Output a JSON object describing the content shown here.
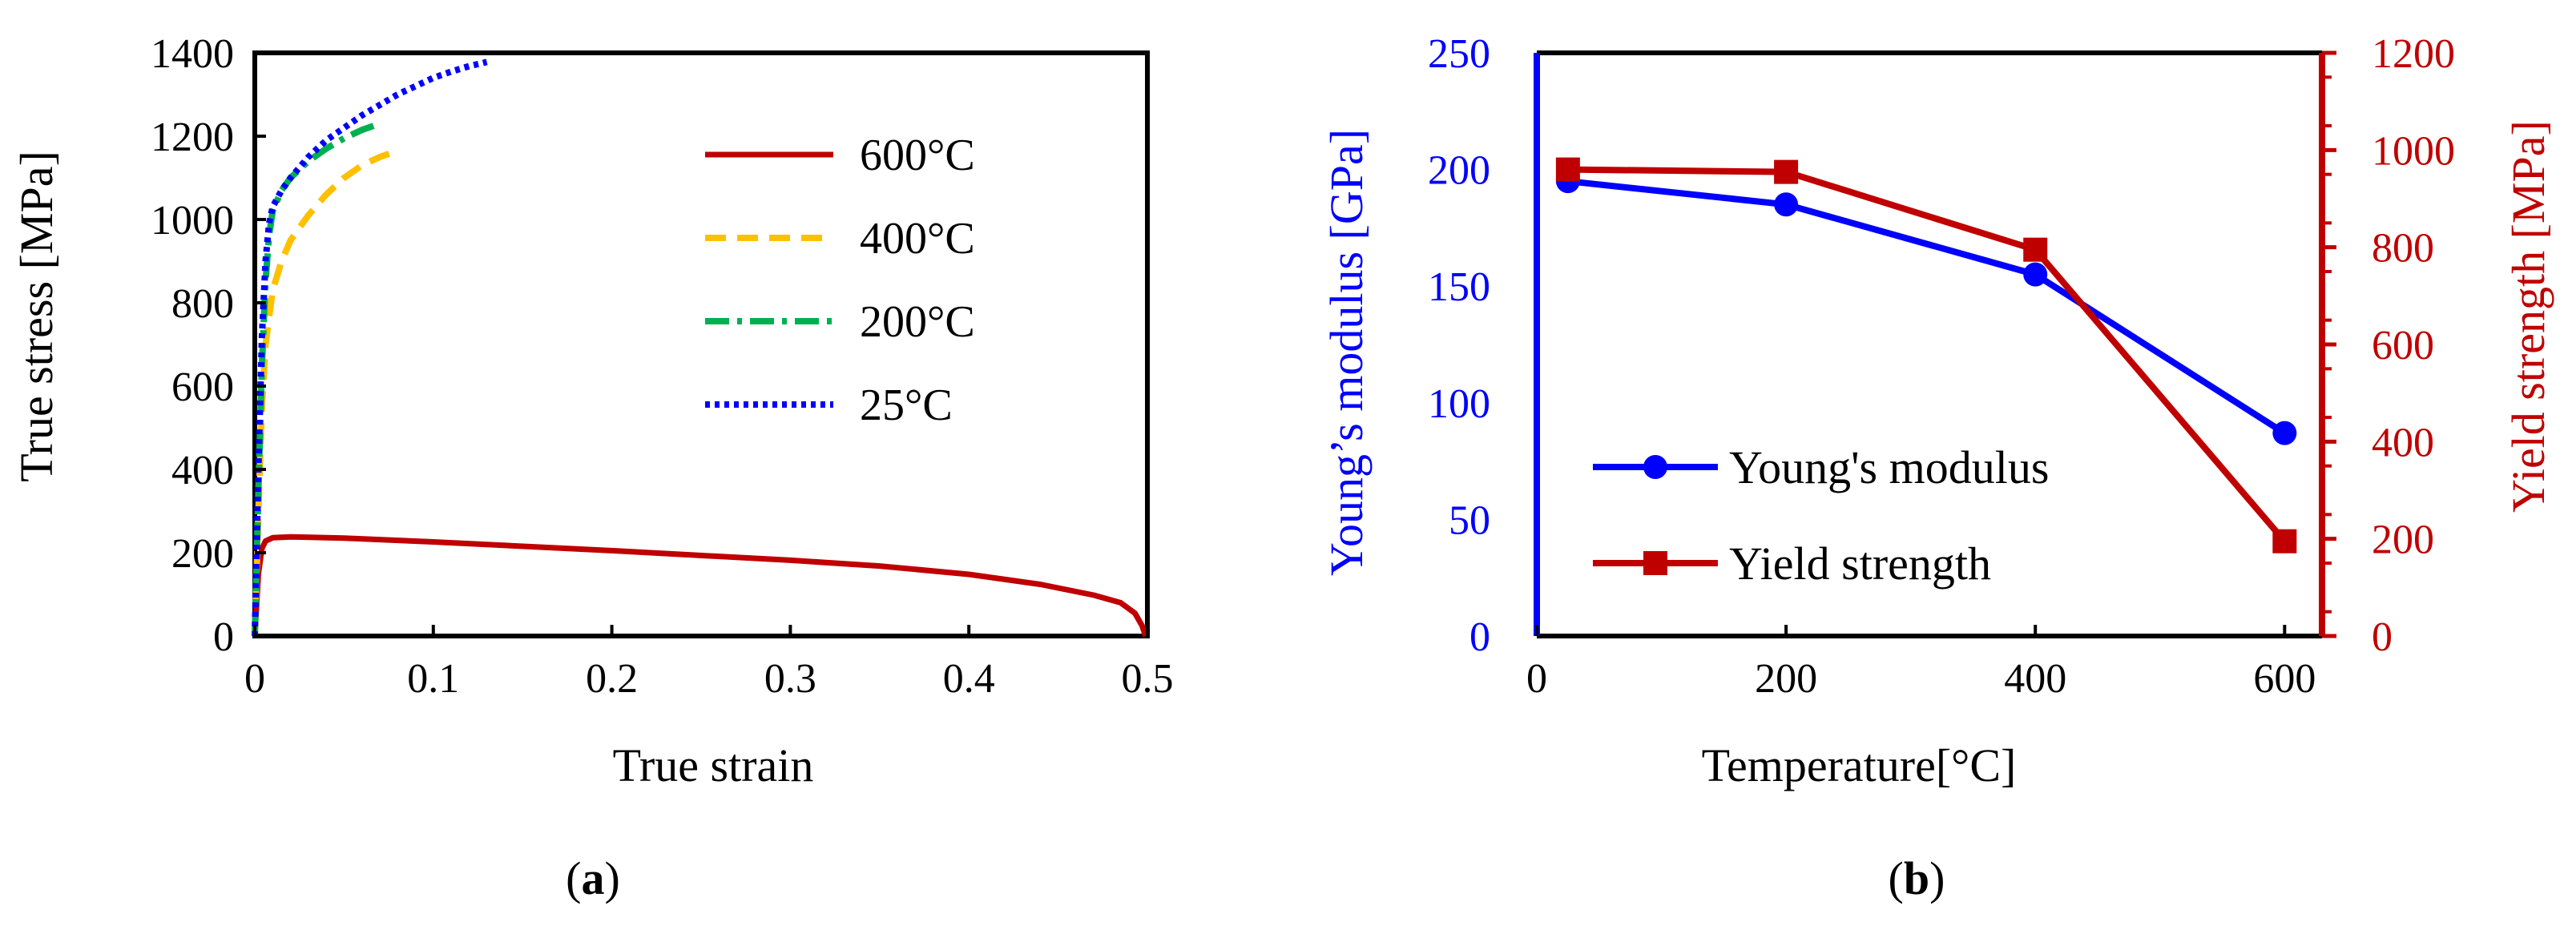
{
  "colors": {
    "red": "#C00000",
    "orange": "#FFC000",
    "green": "#00B050",
    "blue": "#0000FF",
    "black": "#000000"
  },
  "panels": {
    "a": {
      "label_open": "(",
      "label_letter": "a",
      "label_close": ")"
    },
    "b": {
      "label_open": "(",
      "label_letter": "b",
      "label_close": ")"
    }
  },
  "chart_data": [
    {
      "type": "line",
      "title": "",
      "xlabel": "True strain",
      "ylabel": "True stress [MPa]",
      "xlim": [
        0,
        0.5
      ],
      "ylim": [
        0,
        1400
      ],
      "xticks": [
        0,
        0.1,
        0.2,
        0.3,
        0.4,
        0.5
      ],
      "xtick_labels": [
        "0",
        "0.1",
        "0.2",
        "0.3",
        "0.4",
        "0.5"
      ],
      "yticks": [
        0,
        200,
        400,
        600,
        800,
        1000,
        1200,
        1400
      ],
      "ytick_labels": [
        "0",
        "200",
        "400",
        "600",
        "800",
        "1000",
        "1200",
        "1400"
      ],
      "grid": false,
      "legend_position": "upper-right",
      "series": [
        {
          "name": "600°C",
          "style": "solid",
          "color": "#C00000",
          "x": [
            0,
            0.002,
            0.004,
            0.006,
            0.01,
            0.02,
            0.05,
            0.1,
            0.2,
            0.3,
            0.35,
            0.4,
            0.44,
            0.47,
            0.485,
            0.493,
            0.497,
            0.499
          ],
          "y": [
            0,
            150,
            210,
            228,
            236,
            238,
            235,
            226,
            205,
            182,
            168,
            148,
            124,
            98,
            80,
            55,
            25,
            0
          ]
        },
        {
          "name": "400°C",
          "style": "dashed",
          "color": "#FFC000",
          "x": [
            0,
            0.002,
            0.004,
            0.006,
            0.01,
            0.015,
            0.02,
            0.03,
            0.04,
            0.05,
            0.06,
            0.07,
            0.08
          ],
          "y": [
            0,
            300,
            550,
            700,
            830,
            900,
            950,
            1010,
            1060,
            1100,
            1130,
            1150,
            1165
          ]
        },
        {
          "name": "200°C",
          "style": "dashdot",
          "color": "#00B050",
          "x": [
            0,
            0.002,
            0.004,
            0.006,
            0.008,
            0.01,
            0.015,
            0.02,
            0.025,
            0.03,
            0.04,
            0.05,
            0.06,
            0.07
          ],
          "y": [
            0,
            350,
            650,
            850,
            960,
            1020,
            1070,
            1100,
            1120,
            1140,
            1170,
            1195,
            1215,
            1230
          ]
        },
        {
          "name": "25°C",
          "style": "dotted",
          "color": "#0000FF",
          "x": [
            0,
            0.002,
            0.004,
            0.006,
            0.008,
            0.01,
            0.015,
            0.02,
            0.03,
            0.04,
            0.05,
            0.06,
            0.07,
            0.08,
            0.09,
            0.1,
            0.11,
            0.12,
            0.13
          ],
          "y": [
            0,
            400,
            720,
            900,
            990,
            1030,
            1070,
            1100,
            1150,
            1190,
            1220,
            1250,
            1275,
            1300,
            1320,
            1340,
            1355,
            1368,
            1378
          ]
        }
      ]
    },
    {
      "type": "line",
      "title": "",
      "xlabel": "Temperature[°C]",
      "ylabel": "Young’s modulus [GPa]",
      "y2label": "Yield strength [MPa]",
      "xlim": [
        0,
        630
      ],
      "ylim": [
        0,
        250
      ],
      "y2lim": [
        0,
        1200
      ],
      "xticks": [
        0,
        200,
        400,
        600
      ],
      "xtick_labels": [
        "0",
        "200",
        "400",
        "600"
      ],
      "yticks": [
        0,
        50,
        100,
        150,
        200,
        250
      ],
      "ytick_labels": [
        "0",
        "50",
        "100",
        "150",
        "200",
        "250"
      ],
      "y2ticks": [
        0,
        200,
        400,
        600,
        800,
        1000,
        1200
      ],
      "y2tick_labels": [
        "0",
        "200",
        "400",
        "600",
        "800",
        "1000",
        "1200"
      ],
      "grid": false,
      "legend_position": "lower-left",
      "x": [
        25,
        200,
        400,
        600
      ],
      "series": [
        {
          "name": "Young's modulus",
          "axis": "left",
          "marker": "circle",
          "color": "#0000FF",
          "values": [
            195,
            185,
            155,
            87
          ]
        },
        {
          "name": "Yield strength",
          "axis": "right",
          "marker": "square",
          "color": "#C00000",
          "values": [
            960,
            955,
            795,
            195
          ]
        }
      ]
    }
  ]
}
